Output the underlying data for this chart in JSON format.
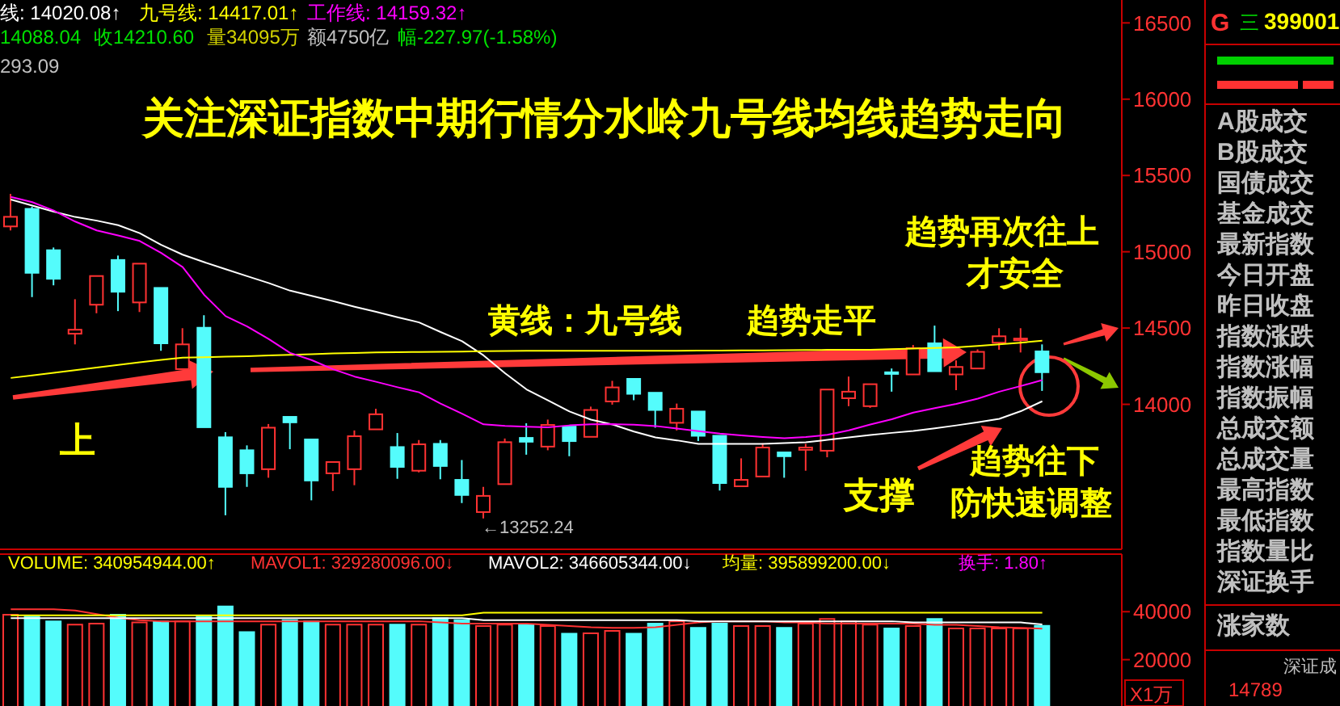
{
  "chart_data": [
    {
      "type": "candlestick",
      "title": "关注深证指数中期行情分水岭九号线均线趋势走向",
      "categories": [
        null,
        null,
        null,
        null,
        null,
        null,
        null,
        null,
        null,
        null,
        null,
        null,
        null,
        null,
        null,
        null,
        null,
        null,
        null,
        null,
        null,
        null,
        null,
        null,
        null,
        null,
        null,
        null,
        null,
        null,
        null,
        null,
        null,
        null,
        null,
        null,
        null,
        null,
        null,
        null,
        null,
        null,
        null,
        null,
        null,
        null,
        null,
        null,
        null
      ],
      "ohlc": [
        [
          15166,
          15380,
          15140,
          15229
        ],
        [
          15281,
          15295,
          14703,
          14862
        ],
        [
          15010,
          15028,
          14780,
          14823
        ],
        [
          14463,
          14689,
          14393,
          14489
        ],
        [
          14653,
          14841,
          14597,
          14841
        ],
        [
          14946,
          14975,
          14611,
          14738
        ],
        [
          14668,
          14922,
          14605,
          14922
        ],
        [
          14763,
          14763,
          14351,
          14400
        ],
        [
          14231,
          14499,
          14231,
          14393
        ],
        [
          14502,
          14584,
          13850,
          13850
        ],
        [
          13784,
          13818,
          13273,
          13459
        ],
        [
          13699,
          13731,
          13459,
          13548
        ],
        [
          13575,
          13871,
          13519,
          13847
        ],
        [
          13918,
          13918,
          13706,
          13882
        ],
        [
          13770,
          13770,
          13371,
          13501
        ],
        [
          13548,
          13622,
          13432,
          13622
        ],
        [
          13575,
          13829,
          13470,
          13791
        ],
        [
          13836,
          13971,
          13836,
          13935
        ],
        [
          13720,
          13812,
          13512,
          13590
        ],
        [
          13565,
          13766,
          13554,
          13738
        ],
        [
          13741,
          13766,
          13509,
          13596
        ],
        [
          13505,
          13635,
          13353,
          13406
        ],
        [
          13294,
          13459,
          13252.24,
          13400
        ],
        [
          13477,
          13776,
          13477,
          13752
        ],
        [
          13780,
          13876,
          13670,
          13755
        ],
        [
          13723,
          13900,
          13699,
          13865
        ],
        [
          13854,
          13854,
          13660,
          13759
        ],
        [
          13787,
          13985,
          13787,
          13963
        ],
        [
          14019,
          14154,
          13998,
          14111
        ],
        [
          14167,
          14167,
          14027,
          14069
        ],
        [
          14076,
          14076,
          13847,
          13963
        ],
        [
          13879,
          14005,
          13829,
          13971
        ],
        [
          13953,
          13953,
          13759,
          13794
        ],
        [
          13794,
          13794,
          13435,
          13484
        ],
        [
          13463,
          13646,
          13463,
          13505
        ],
        [
          13527,
          13745,
          13527,
          13717
        ],
        [
          13685,
          13685,
          13519,
          13660
        ],
        [
          13702,
          13741,
          13565,
          13717
        ],
        [
          13696,
          14097,
          13653,
          14097
        ],
        [
          14040,
          14182,
          13988,
          14083
        ],
        [
          13988,
          14132,
          13977,
          14132
        ],
        [
          14210,
          14235,
          14083,
          14200
        ],
        [
          14196,
          14389,
          14196,
          14368
        ],
        [
          14400,
          14516,
          14217,
          14217
        ],
        [
          14196,
          14288,
          14093,
          14245
        ],
        [
          14235,
          14360,
          14235,
          14344
        ],
        [
          14404,
          14499,
          14358,
          14446
        ],
        [
          14420,
          14499,
          14340,
          14431
        ],
        [
          14347,
          14393,
          14088.04,
          14210.6
        ]
      ],
      "colors": [
        "#ff3232",
        "#54fcfc",
        "#54fcfc",
        "#ff3232",
        "#ff3232",
        "#54fcfc",
        "#ff3232",
        "#54fcfc",
        "#ff3232",
        "#54fcfc",
        "#54fcfc",
        "#54fcfc",
        "#ff3232",
        "#54fcfc",
        "#54fcfc",
        "#ff3232",
        "#ff3232",
        "#ff3232",
        "#54fcfc",
        "#ff3232",
        "#54fcfc",
        "#54fcfc",
        "#ff3232",
        "#ff3232",
        "#54fcfc",
        "#ff3232",
        "#54fcfc",
        "#ff3232",
        "#ff3232",
        "#54fcfc",
        "#54fcfc",
        "#ff3232",
        "#54fcfc",
        "#54fcfc",
        "#ff3232",
        "#ff3232",
        "#54fcfc",
        "#ff3232",
        "#ff3232",
        "#ff3232",
        "#ff3232",
        "#54fcfc",
        "#ff3232",
        "#54fcfc",
        "#ff3232",
        "#ff3232",
        "#ff3232",
        "#ff3232",
        "#54fcfc"
      ],
      "series": [
        {
          "type": "line",
          "color": "#ffffff",
          "values": [
            15342,
            15303,
            15263,
            15228,
            15204,
            15174,
            15122,
            15045,
            14981,
            14932,
            14886,
            14840,
            14795,
            14745,
            14711,
            14677,
            14640,
            14606,
            14571,
            14537,
            14474,
            14414,
            14321,
            14204,
            14098,
            14026,
            13953,
            13900,
            13868,
            13822,
            13783,
            13764,
            13741,
            13741,
            13741,
            13741,
            13746,
            13751,
            13767,
            13783,
            13799,
            13813,
            13826,
            13843,
            13862,
            13882,
            13905,
            13955,
            14020.08
          ]
        },
        {
          "type": "line",
          "color": "#ffff00",
          "values": [
            14173,
            14190,
            14207,
            14224,
            14241,
            14258,
            14276,
            14292,
            14306,
            14309,
            14312,
            14315,
            14320,
            14324,
            14329,
            14334,
            14337,
            14340,
            14342,
            14343,
            14345,
            14346,
            14348,
            14350,
            14351,
            14351,
            14351,
            14351,
            14351,
            14351,
            14351,
            14351,
            14352,
            14353,
            14354,
            14354,
            14355,
            14356,
            14357,
            14357,
            14358,
            14362,
            14366,
            14370,
            14374,
            14383,
            14393,
            14404,
            14417.01
          ]
        },
        {
          "type": "line",
          "color": "#ff00ff",
          "values": [
            15360,
            15325,
            15270,
            15198,
            15140,
            15107,
            15071,
            14992,
            14900,
            14718,
            14578,
            14510,
            14428,
            14337,
            14290,
            14230,
            14182,
            14148,
            14112,
            14079,
            14005,
            13939,
            13869,
            13859,
            13853,
            13850,
            13862,
            13869,
            13870,
            13867,
            13858,
            13841,
            13824,
            13808,
            13797,
            13786,
            13778,
            13786,
            13800,
            13830,
            13868,
            13902,
            13946,
            13975,
            14003,
            14037,
            14083,
            14120,
            14159.32
          ]
        }
      ],
      "ylim": [
        13050,
        16650
      ],
      "yticks": [
        14000,
        14500,
        15000,
        15500,
        16000,
        16500
      ],
      "tick_labels": "y",
      "annotations": [
        "线: 14020.08↑",
        "九号线: 14417.01↑",
        "工作线: 14159.32↑",
        "14088.04",
        "收14210.60",
        "量34095万",
        "额4750亿",
        "幅-227.97(-1.58%)",
        "293.09",
        "黄线：九号线",
        "趋势走平",
        "上",
        "支撑",
        "趋势再次往上",
        "才安全",
        "趋势往下",
        "防快速调整",
        "←13252.24"
      ]
    },
    {
      "type": "bar",
      "ylabel": "X1万",
      "categories": [
        null,
        null,
        null,
        null,
        null,
        null,
        null,
        null,
        null,
        null,
        null,
        null,
        null,
        null,
        null,
        null,
        null,
        null,
        null,
        null,
        null,
        null,
        null,
        null,
        null,
        null,
        null,
        null,
        null,
        null,
        null,
        null,
        null,
        null,
        null,
        null,
        null,
        null,
        null,
        null,
        null,
        null,
        null,
        null,
        null,
        null,
        null,
        null,
        null
      ],
      "series": [
        {
          "type": "bar",
          "values": [
            38700,
            38000,
            36000,
            34600,
            35000,
            38700,
            35500,
            36000,
            36000,
            38000,
            42150,
            31500,
            34600,
            36500,
            36000,
            34600,
            34600,
            34600,
            34600,
            34600,
            37300,
            36500,
            34000,
            34600,
            34600,
            34000,
            30800,
            31000,
            32000,
            30800,
            35000,
            36000,
            33300,
            35000,
            34000,
            34000,
            33300,
            35000,
            37000,
            36000,
            34600,
            33000,
            34000,
            37000,
            33000,
            33000,
            33000,
            33000,
            34095
          ],
          "colors": [
            "#ff3232",
            "#54fcfc",
            "#54fcfc",
            "#ff3232",
            "#ff3232",
            "#54fcfc",
            "#ff3232",
            "#54fcfc",
            "#ff3232",
            "#54fcfc",
            "#54fcfc",
            "#54fcfc",
            "#ff3232",
            "#54fcfc",
            "#54fcfc",
            "#ff3232",
            "#ff3232",
            "#ff3232",
            "#54fcfc",
            "#ff3232",
            "#54fcfc",
            "#54fcfc",
            "#ff3232",
            "#ff3232",
            "#54fcfc",
            "#ff3232",
            "#54fcfc",
            "#ff3232",
            "#ff3232",
            "#54fcfc",
            "#54fcfc",
            "#ff3232",
            "#54fcfc",
            "#54fcfc",
            "#ff3232",
            "#ff3232",
            "#54fcfc",
            "#ff3232",
            "#ff3232",
            "#ff3232",
            "#ff3232",
            "#54fcfc",
            "#ff3232",
            "#54fcfc",
            "#ff3232",
            "#ff3232",
            "#ff3232",
            "#ff3232",
            "#54fcfc"
          ]
        },
        {
          "type": "line",
          "color": "#ff3232",
          "values": [
            41000,
            41000,
            41000,
            40500,
            39000,
            37500,
            36500,
            36000,
            36000,
            36000,
            36000,
            36000,
            36000,
            36000,
            36000,
            36000,
            36000,
            36000,
            36000,
            36000,
            35500,
            35000,
            35000,
            35000,
            35000,
            34500,
            34000,
            33500,
            33300,
            33300,
            33500,
            34500,
            35500,
            36000,
            36000,
            36000,
            35500,
            35500,
            35000,
            35000,
            35000,
            35000,
            35000,
            34500,
            34500,
            34000,
            33500,
            33300,
            32928
          ]
        },
        {
          "type": "line",
          "color": "#ffffff",
          "values": [
            37300,
            37300,
            37300,
            37300,
            37300,
            37300,
            37300,
            37300,
            37300,
            37300,
            37300,
            37300,
            37300,
            37300,
            37300,
            37300,
            37300,
            37300,
            37300,
            37300,
            37300,
            37300,
            36500,
            36500,
            36500,
            36500,
            36500,
            36500,
            36500,
            36500,
            36500,
            36500,
            36000,
            36000,
            36000,
            36000,
            36000,
            36000,
            36000,
            36000,
            36000,
            36000,
            35500,
            35500,
            35500,
            35500,
            35500,
            35500,
            34660
          ]
        },
        {
          "type": "line",
          "color": "#ffff00",
          "values": [
            38500,
            38500,
            38500,
            38500,
            38500,
            38500,
            38500,
            38500,
            38500,
            38500,
            38500,
            38500,
            38500,
            38500,
            38500,
            38500,
            38500,
            38500,
            38500,
            38500,
            38500,
            38500,
            39590,
            39590,
            39590,
            39590,
            39590,
            39590,
            39590,
            39590,
            39590,
            39590,
            39590,
            39590,
            39590,
            39590,
            39590,
            39590,
            39590,
            39590,
            39590,
            39590,
            39590,
            39590,
            39590,
            39590,
            39590,
            39590,
            39590
          ]
        }
      ],
      "ylim": [
        0,
        64000
      ],
      "yticks": [
        20000,
        40000
      ],
      "tick_labels": "y",
      "annotations": [
        "VOLUME: 340954944.00↑",
        "MAVOL1: 329280096.00↓",
        "MAVOL2: 346605344.00↓",
        "均量: 395899200.00↓",
        "换手: 1.80↑"
      ]
    },
    {
      "type": "other",
      "annotations": [
        "G",
        "三",
        "399001",
        "A股成交",
        "B股成交",
        "国债成交",
        "基金成交",
        "最新指数",
        "今日开盘",
        "昨日收盘",
        "指数涨跌",
        "指数涨幅",
        "指数振幅",
        "总成交额",
        "总成交量",
        "最高指数",
        "最低指数",
        "指数量比",
        "深证换手",
        "涨家数",
        "深证成",
        "14789"
      ]
    }
  ]
}
